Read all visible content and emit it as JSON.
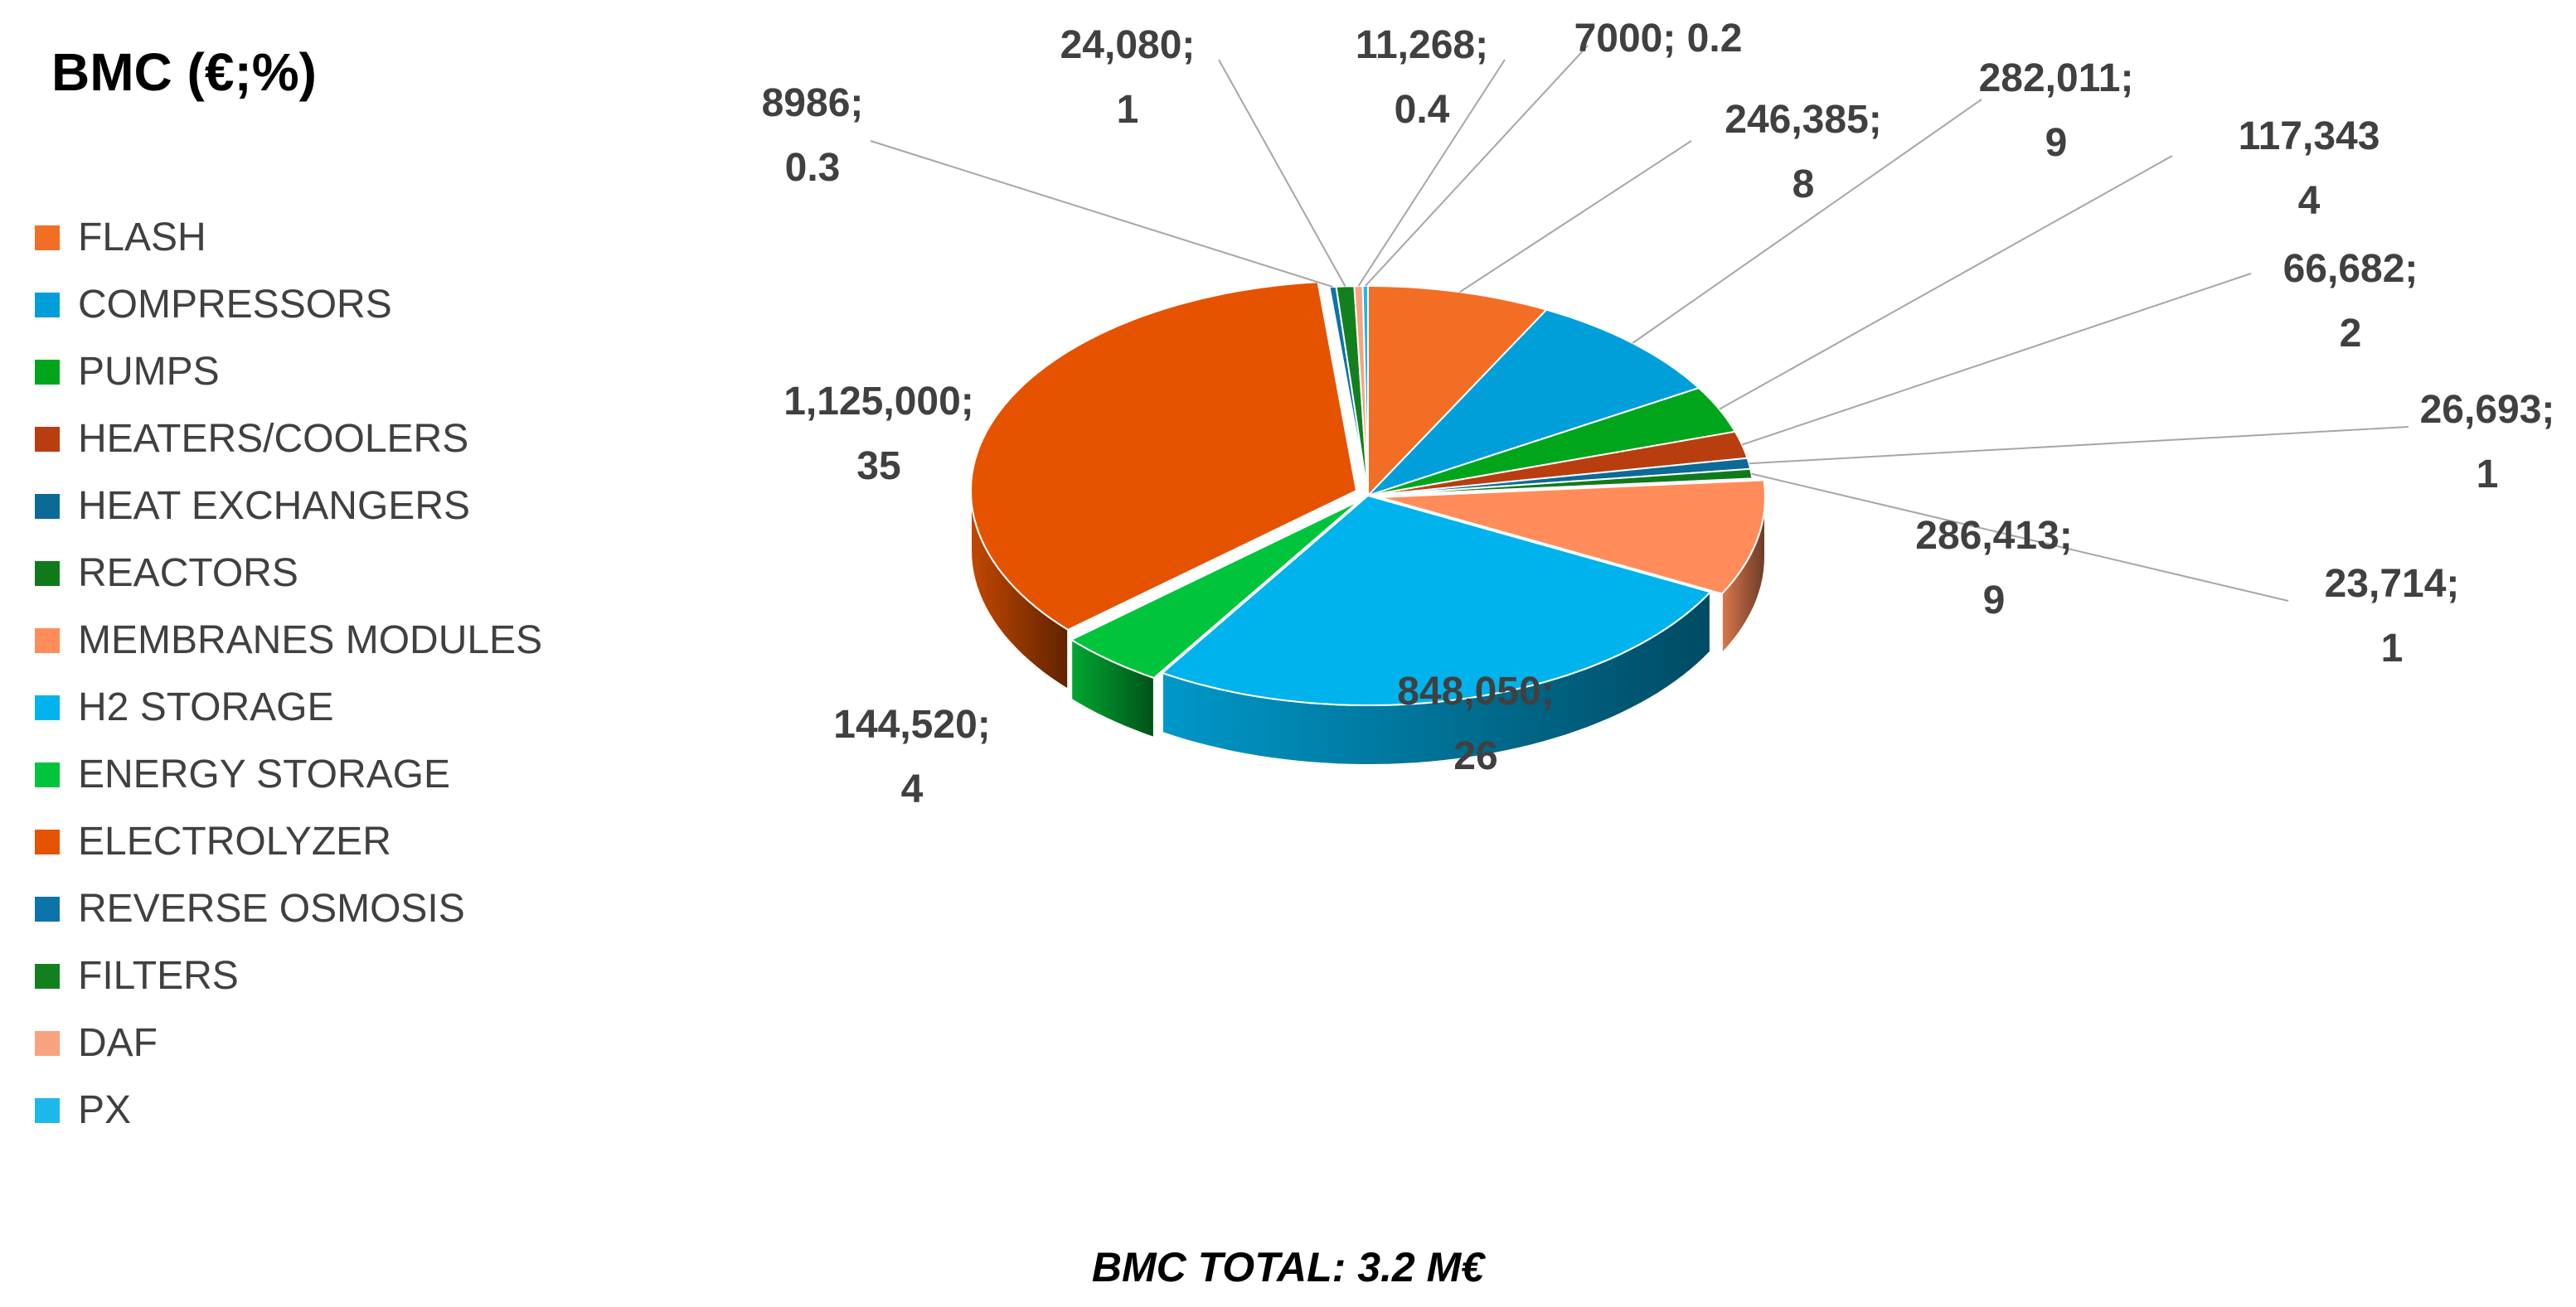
{
  "chart_data": {
    "type": "pie",
    "title": "BMC (€;%)",
    "footer": "BMC TOTAL: 3.2 M€",
    "legend_position": "left",
    "style": "3d-exploded-pie",
    "slices": [
      {
        "name": "FLASH",
        "value": 246385,
        "percent": 8,
        "label_line1": "246,385;",
        "label_line2": "8",
        "color": "#F26E25"
      },
      {
        "name": "COMPRESSORS",
        "value": 282011,
        "percent": 9,
        "label_line1": "282,011;",
        "label_line2": "9",
        "color": "#009FDA"
      },
      {
        "name": "PUMPS",
        "value": 117343,
        "percent": 4,
        "label_line1": "117,343",
        "label_line2": "4",
        "color": "#00A51C"
      },
      {
        "name": "HEATERS/COOLERS",
        "value": 66682,
        "percent": 2,
        "label_line1": "66,682;",
        "label_line2": "2",
        "color": "#B83D0F"
      },
      {
        "name": "HEAT EXCHANGERS",
        "value": 26693,
        "percent": 1,
        "label_line1": "26,693;",
        "label_line2": "1",
        "color": "#0B6A96"
      },
      {
        "name": "REACTORS",
        "value": 23714,
        "percent": 1,
        "label_line1": "23,714;",
        "label_line2": "1",
        "color": "#107A1A"
      },
      {
        "name": "MEMBRANES MODULES",
        "value": 286413,
        "percent": 9,
        "label_line1": "286,413;",
        "label_line2": "9",
        "color": "#FF8C5A"
      },
      {
        "name": "H2 STORAGE",
        "value": 848050,
        "percent": 26,
        "label_line1": "848,050;",
        "label_line2": "26",
        "color": "#00B3EC"
      },
      {
        "name": "ENERGY STORAGE",
        "value": 144520,
        "percent": 4,
        "label_line1": "144,520;",
        "label_line2": "4",
        "color": "#00C43B"
      },
      {
        "name": "ELECTROLYZER",
        "value": 1125000,
        "percent": 35,
        "label_line1": "1,125,000;",
        "label_line2": "35",
        "color": "#E55300"
      },
      {
        "name": "REVERSE OSMOSIS",
        "value": 8986,
        "percent": 0.3,
        "label_line1": "8986;",
        "label_line2": "0.3",
        "color": "#0E73A8"
      },
      {
        "name": "FILTERS",
        "value": 24080,
        "percent": 1,
        "label_line1": "24,080;",
        "label_line2": "1",
        "color": "#13801F"
      },
      {
        "name": "DAF",
        "value": 11268,
        "percent": 0.4,
        "label_line1": "11,268;",
        "label_line2": "0.4",
        "color": "#F7A380"
      },
      {
        "name": "PX",
        "value": 7000,
        "percent": 0.2,
        "label_line1": "7000; 0.2",
        "label_line2": "",
        "color": "#1CB8EC"
      }
    ]
  }
}
